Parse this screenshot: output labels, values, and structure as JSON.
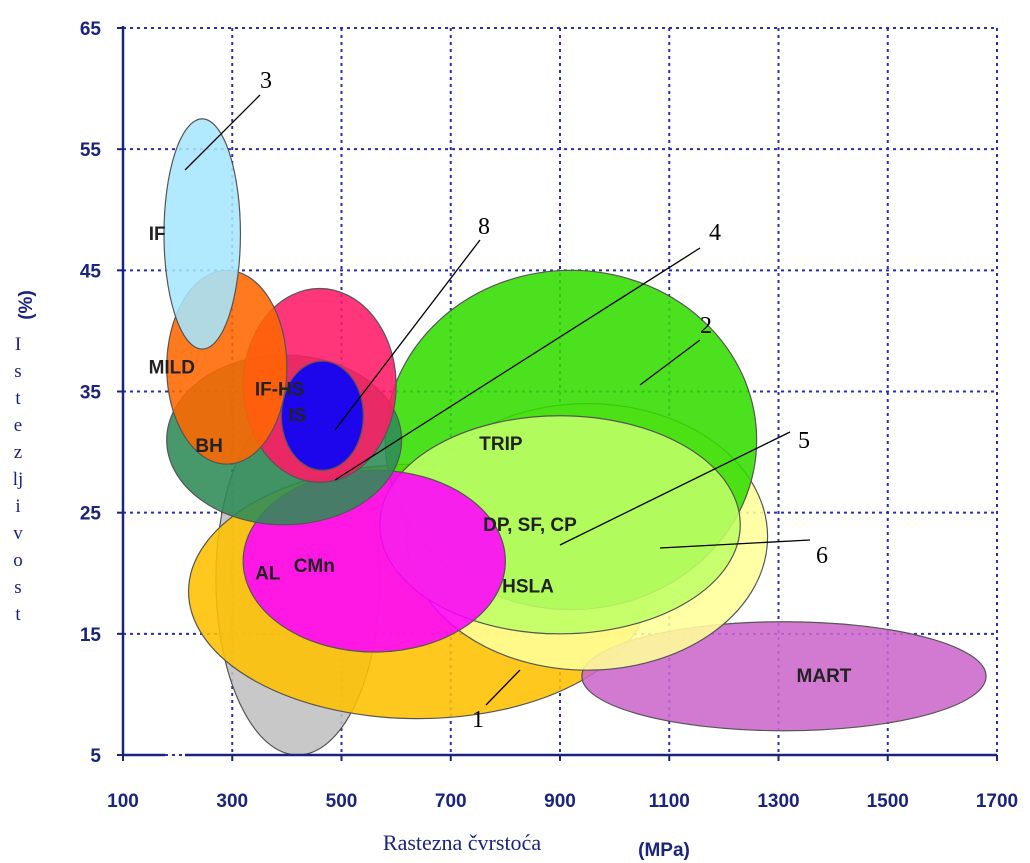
{
  "chart_data": {
    "type": "scatter",
    "xlabel": "Rastezna čvrstoća",
    "xunit": "(MPa)",
    "ylabel": "Istezljivost",
    "yunit": "(%)",
    "xlim": [
      100,
      1700
    ],
    "ylim": [
      5,
      65
    ],
    "xticks": [
      "100",
      "300",
      "500",
      "700",
      "900",
      "1100",
      "1300",
      "1500",
      "1700"
    ],
    "yticks": [
      "5",
      "15",
      "25",
      "35",
      "45",
      "55",
      "65"
    ],
    "grid": true,
    "regions": [
      {
        "label": "AL",
        "cx": 420,
        "cy": 19.5,
        "rx": 150,
        "ry": 14.5,
        "angle": 0,
        "color": "#c0c0c0"
      },
      {
        "label": "HSLA",
        "cx": 640,
        "cy": 18.5,
        "rx": 420,
        "ry": 10.5,
        "angle": 0,
        "color": "#ffc000"
      },
      {
        "label": "MART",
        "cx": 1310,
        "cy": 11.5,
        "rx": 370,
        "ry": 4.5,
        "angle": 0,
        "color": "#cc66cc"
      },
      {
        "label": "",
        "cx": 950,
        "cy": 23.0,
        "rx": 330,
        "ry": 11.0,
        "angle": 0,
        "color": "#ffff99"
      },
      {
        "label": "TRIP",
        "cx": 920,
        "cy": 31.0,
        "rx": 340,
        "ry": 14.0,
        "angle": 0,
        "color": "#33dd00"
      },
      {
        "label": "DP, SF, CP",
        "cx": 900,
        "cy": 24.0,
        "rx": 330,
        "ry": 9.0,
        "angle": 0,
        "color": "#bfff66"
      },
      {
        "label": "CMn",
        "cx": 560,
        "cy": 21.0,
        "rx": 240,
        "ry": 7.5,
        "angle": 0,
        "color": "#ff00ff"
      },
      {
        "label": "BH",
        "cx": 395,
        "cy": 31.0,
        "rx": 215,
        "ry": 7.0,
        "angle": 0,
        "color": "#2e8b57"
      },
      {
        "label": "IF-HS",
        "cx": 460,
        "cy": 35.5,
        "rx": 140,
        "ry": 8.0,
        "angle": 0,
        "color": "#ff1a66"
      },
      {
        "label": "IS",
        "cx": 465,
        "cy": 33.0,
        "rx": 75,
        "ry": 4.5,
        "angle": 0,
        "color": "#0000ff"
      },
      {
        "label": "MILD",
        "cx": 290,
        "cy": 37.0,
        "rx": 110,
        "ry": 8.0,
        "angle": 0,
        "color": "#ff6600"
      },
      {
        "label": "IF",
        "cx": 245,
        "cy": 48.0,
        "rx": 70,
        "ry": 9.5,
        "angle": 0,
        "color": "#a6e6ff"
      }
    ],
    "annotations": [
      "1",
      "2",
      "3",
      "4",
      "5",
      "6",
      "8"
    ]
  }
}
